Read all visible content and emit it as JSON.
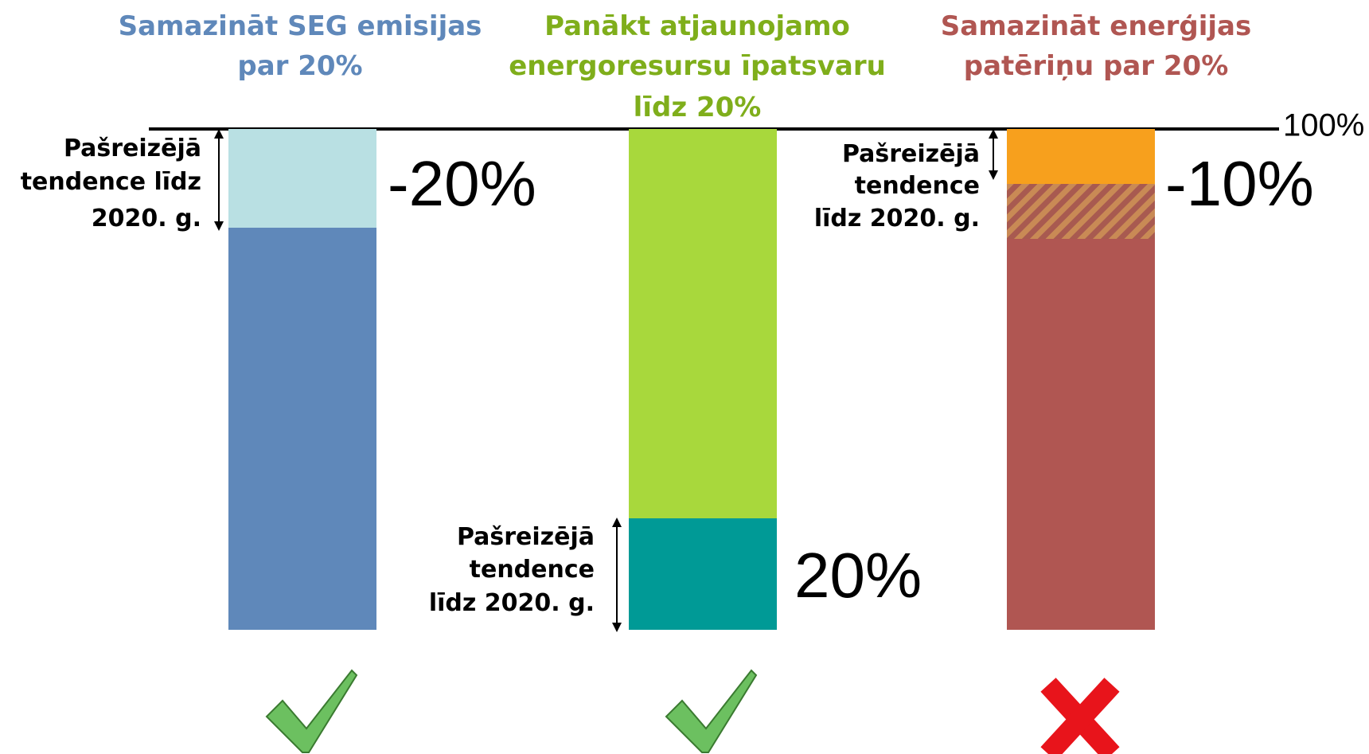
{
  "scale_label": "100%",
  "columns": [
    {
      "title": [
        "Samazināt SEG emisijas",
        "par 20%"
      ],
      "note": [
        "Pašreizējā",
        "tendence līdz",
        "2020. g."
      ],
      "change": "-20%",
      "status": "achieved"
    },
    {
      "title": [
        "Panākt atjaunojamo",
        "energoresursu īpatsvaru",
        "līdz 20%"
      ],
      "note": [
        "Pašreizējā",
        "tendence",
        "līdz 2020. g."
      ],
      "change": "20%",
      "status": "achieved"
    },
    {
      "title": [
        "Samazināt enerģijas",
        "patēriņu par 20%"
      ],
      "note": [
        "Pašreizējā",
        "tendence",
        "līdz 2020. g."
      ],
      "change": "-10%",
      "status": "not achieved"
    }
  ]
}
